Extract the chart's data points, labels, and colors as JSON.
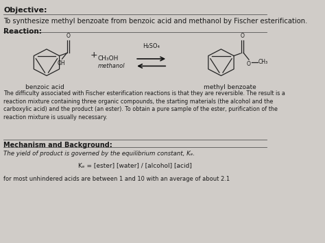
{
  "background_color": "#d0ccc8",
  "title_section": "Objective:",
  "objective_text": "To synthesize methyl benzoate from benzoic acid and methanol by Fischer esterification.",
  "reaction_label": "Reaction:",
  "reactant_label": "benzoic acid",
  "product_label": "methyl benzoate",
  "reagent1": "+ CH₃OH",
  "reagent1_sub": "methanol",
  "catalyst": "H₂SO₄",
  "paragraph": "The difficulty associated with Fischer esterification reactions is that they are reversible. The result is a\nreaction mixture containing three organic compounds, the starting materials (the alcohol and the\ncarboxylic acid) and the product (an ester). To obtain a pure sample of the ester, purification of the\nreaction mixture is usually necessary.",
  "section2": "Mechanism and Background:",
  "yield_text": "The yield of product is governed by the equilibrium constant, Kₑ.",
  "keq_text": "Kₑ = [ester] [water] / [alcohol] [acid]",
  "bottom_text": "for most unhindered acids are between 1 and 10 with an average of about 2.1",
  "text_color": "#1a1a1a",
  "line_color": "#555555",
  "figsize": [
    4.74,
    3.55
  ],
  "dpi": 100
}
